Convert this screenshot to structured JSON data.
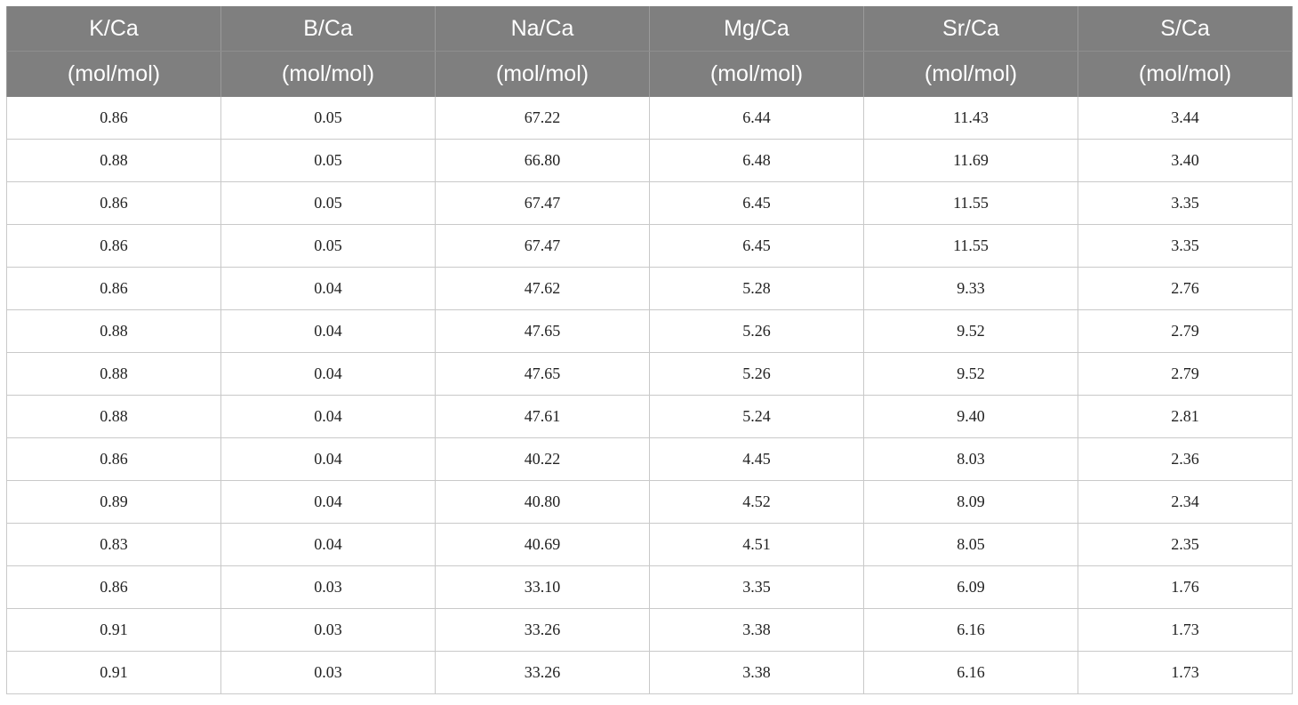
{
  "table": {
    "headers": [
      {
        "name": "K/Ca",
        "unit": "(mol/mol)"
      },
      {
        "name": "B/Ca",
        "unit": "(mol/mol)"
      },
      {
        "name": "Na/Ca",
        "unit": "(mol/mol)"
      },
      {
        "name": "Mg/Ca",
        "unit": "(mol/mol)"
      },
      {
        "name": "Sr/Ca",
        "unit": "(mol/mol)"
      },
      {
        "name": "S/Ca",
        "unit": "(mol/mol)"
      }
    ],
    "rows": [
      [
        "0.86",
        "0.05",
        "67.22",
        "6.44",
        "11.43",
        "3.44"
      ],
      [
        "0.88",
        "0.05",
        "66.80",
        "6.48",
        "11.69",
        "3.40"
      ],
      [
        "0.86",
        "0.05",
        "67.47",
        "6.45",
        "11.55",
        "3.35"
      ],
      [
        "0.86",
        "0.05",
        "67.47",
        "6.45",
        "11.55",
        "3.35"
      ],
      [
        "0.86",
        "0.04",
        "47.62",
        "5.28",
        "9.33",
        "2.76"
      ],
      [
        "0.88",
        "0.04",
        "47.65",
        "5.26",
        "9.52",
        "2.79"
      ],
      [
        "0.88",
        "0.04",
        "47.65",
        "5.26",
        "9.52",
        "2.79"
      ],
      [
        "0.88",
        "0.04",
        "47.61",
        "5.24",
        "9.40",
        "2.81"
      ],
      [
        "0.86",
        "0.04",
        "40.22",
        "4.45",
        "8.03",
        "2.36"
      ],
      [
        "0.89",
        "0.04",
        "40.80",
        "4.52",
        "8.09",
        "2.34"
      ],
      [
        "0.83",
        "0.04",
        "40.69",
        "4.51",
        "8.05",
        "2.35"
      ],
      [
        "0.86",
        "0.03",
        "33.10",
        "3.35",
        "6.09",
        "1.76"
      ],
      [
        "0.91",
        "0.03",
        "33.26",
        "3.38",
        "6.16",
        "1.73"
      ],
      [
        "0.91",
        "0.03",
        "33.26",
        "3.38",
        "6.16",
        "1.73"
      ]
    ]
  },
  "colors": {
    "header_bg": "#7f7f7f",
    "header_text": "#ffffff",
    "grid_line": "#c9c9c9",
    "body_text": "#222222"
  }
}
